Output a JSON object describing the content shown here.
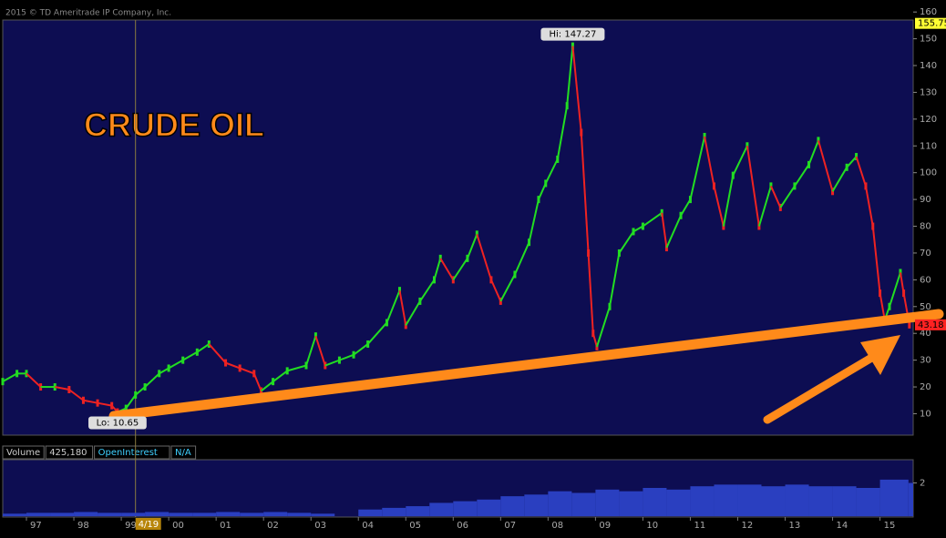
{
  "header": {
    "copyright": "2015 © TD Ameritrade IP Company, Inc."
  },
  "readouts": [
    {
      "name": "Volume",
      "value": "425,180"
    },
    {
      "name": "OpenInterest",
      "value": "N/A"
    }
  ],
  "chart_data": [
    {
      "type": "price",
      "title": "CRUDE OIL",
      "x": [
        1996.5,
        1996.8,
        1997.0,
        1997.3,
        1997.6,
        1997.9,
        1998.2,
        1998.5,
        1998.8,
        1998.92,
        1999.1,
        1999.3,
        1999.5,
        1999.8,
        2000.0,
        2000.3,
        2000.6,
        2000.85,
        2001.2,
        2001.5,
        2001.8,
        2001.95,
        2002.2,
        2002.5,
        2002.9,
        2003.1,
        2003.3,
        2003.6,
        2003.9,
        2004.2,
        2004.6,
        2004.87,
        2005.0,
        2005.3,
        2005.6,
        2005.73,
        2006.0,
        2006.3,
        2006.5,
        2006.8,
        2007.0,
        2007.3,
        2007.6,
        2007.8,
        2007.95,
        2008.2,
        2008.4,
        2008.52,
        2008.7,
        2008.85,
        2008.95,
        2009.03,
        2009.3,
        2009.5,
        2009.8,
        2010.0,
        2010.4,
        2010.5,
        2010.8,
        2011.0,
        2011.3,
        2011.5,
        2011.7,
        2011.9,
        2012.2,
        2012.45,
        2012.7,
        2012.9,
        2013.2,
        2013.5,
        2013.7,
        2014.0,
        2014.3,
        2014.5,
        2014.7,
        2014.85,
        2015.0,
        2015.1,
        2015.2,
        2015.43,
        2015.5,
        2015.62
      ],
      "values": [
        22,
        25,
        25,
        20,
        20,
        19,
        15,
        14,
        13,
        10.65,
        12,
        17,
        20,
        25,
        27,
        30,
        33,
        36,
        29,
        27,
        25,
        18.5,
        22,
        26,
        28,
        39,
        28,
        30,
        32,
        36,
        44,
        56,
        43,
        52,
        60,
        68,
        60,
        68,
        77,
        60,
        52,
        62,
        74,
        90,
        96,
        105,
        125,
        147.27,
        115,
        70,
        40,
        35,
        50,
        70,
        78,
        80,
        85,
        72,
        84,
        90,
        113.5,
        95,
        80,
        99,
        110,
        80,
        95,
        87,
        95,
        103,
        112,
        93,
        102,
        106,
        95,
        80,
        55,
        45,
        50,
        62.7,
        55,
        43.18
      ],
      "up_color": "#22dd22",
      "down_color": "#ee2222",
      "xlim": [
        1996.5,
        2015.7
      ],
      "xticks": [
        {
          "value": 1997,
          "label": "97"
        },
        {
          "value": 1998,
          "label": "98"
        },
        {
          "value": 1999,
          "label": "99"
        },
        {
          "value": 2000,
          "label": "00"
        },
        {
          "value": 2001,
          "label": "01"
        },
        {
          "value": 2002,
          "label": "02"
        },
        {
          "value": 2003,
          "label": "03"
        },
        {
          "value": 2004,
          "label": "04"
        },
        {
          "value": 2005,
          "label": "05"
        },
        {
          "value": 2006,
          "label": "06"
        },
        {
          "value": 2007,
          "label": "07"
        },
        {
          "value": 2008,
          "label": "08"
        },
        {
          "value": 2009,
          "label": "09"
        },
        {
          "value": 2010,
          "label": "10"
        },
        {
          "value": 2011,
          "label": "11"
        },
        {
          "value": 2012,
          "label": "12"
        },
        {
          "value": 2013,
          "label": "13"
        },
        {
          "value": 2014,
          "label": "14"
        },
        {
          "value": 2015,
          "label": "15"
        }
      ],
      "ylim": [
        2,
        157
      ],
      "yticks": [
        10,
        20,
        30,
        40,
        50,
        60,
        70,
        80,
        90,
        100,
        110,
        120,
        130,
        140,
        150,
        160
      ],
      "cursor": {
        "value": 1999.3,
        "label": "4/19"
      },
      "annotations": [
        {
          "x": 2008.52,
          "value": 147.27,
          "label": "Hi: 147.27",
          "position": "above"
        },
        {
          "x": 1998.92,
          "value": 10.65,
          "label": "Lo: 10.65",
          "position": "below"
        }
      ],
      "price_markers": [
        {
          "value": 155.75,
          "color": "#ffff33"
        },
        {
          "value": 43.18,
          "color": "#ff2222"
        }
      ]
    },
    {
      "type": "volume",
      "x": [
        1996.5,
        1997.0,
        1997.5,
        1998.0,
        1998.5,
        1999.0,
        1999.5,
        2000.0,
        2000.5,
        2001.0,
        2001.5,
        2002.0,
        2002.5,
        2003.0,
        2003.5,
        2004.0,
        2004.5,
        2005.0,
        2005.5,
        2006.0,
        2006.5,
        2007.0,
        2007.5,
        2008.0,
        2008.5,
        2009.0,
        2009.5,
        2010.0,
        2010.5,
        2011.0,
        2011.5,
        2012.0,
        2012.5,
        2013.0,
        2013.5,
        2014.0,
        2014.5,
        2015.0,
        2015.6
      ],
      "values": [
        0.15,
        0.2,
        0.2,
        0.25,
        0.2,
        0.2,
        0.25,
        0.2,
        0.2,
        0.25,
        0.2,
        0.25,
        0.2,
        0.15,
        null,
        0.4,
        0.5,
        0.6,
        0.8,
        0.9,
        1.0,
        1.2,
        1.3,
        1.5,
        1.4,
        1.6,
        1.5,
        1.7,
        1.6,
        1.8,
        1.9,
        1.9,
        1.8,
        1.9,
        1.8,
        1.8,
        1.7,
        2.2,
        2.0
      ],
      "color": "#2a3fc0",
      "ylim": [
        0,
        3.4
      ],
      "yticks": [
        2
      ]
    }
  ]
}
